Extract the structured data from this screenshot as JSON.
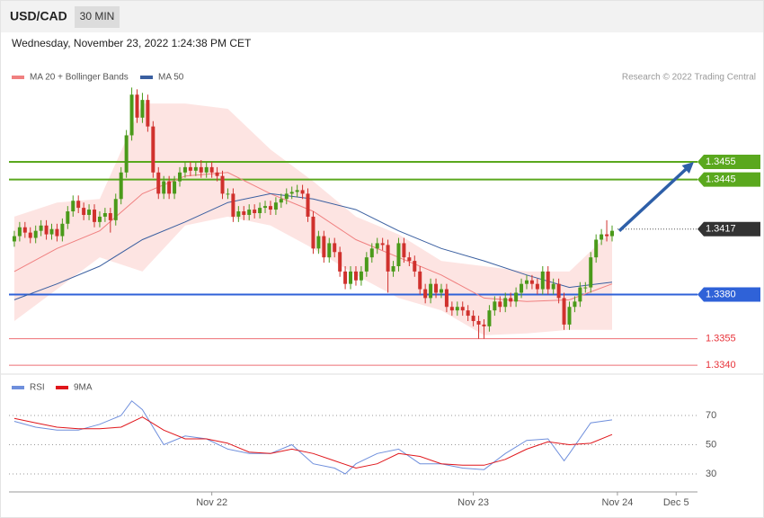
{
  "chart_data": [
    {
      "type": "candlestick",
      "title": "USD/CAD",
      "timeframe": "30 MIN",
      "subtitle": "Wednesday, November 23, 2022 1:24:38 PM CET",
      "source": "Research © 2022 Trading Central",
      "up_color": "#4a9a1a",
      "down_color": "#d0312d",
      "xlim": [
        -1,
        128
      ],
      "ylim": [
        1.3336,
        1.3516
      ],
      "open": [
        1.341,
        1.3413,
        1.3418,
        1.3415,
        1.3412,
        1.3416,
        1.3419,
        1.3414,
        1.3417,
        1.3413,
        1.342,
        1.3427,
        1.3433,
        1.3429,
        1.3425,
        1.3428,
        1.3421,
        1.3424,
        1.3426,
        1.3422,
        1.3434,
        1.3449,
        1.347,
        1.3493,
        1.348,
        1.349,
        1.3475,
        1.3449,
        1.3437,
        1.3444,
        1.3437,
        1.3444,
        1.3449,
        1.3452,
        1.345,
        1.3452,
        1.3449,
        1.3452,
        1.3449,
        1.3447,
        1.3437,
        1.3437,
        1.3424,
        1.3427,
        1.3425,
        1.3428,
        1.3426,
        1.3429,
        1.343,
        1.3428,
        1.3432,
        1.3434,
        1.3437,
        1.3438,
        1.3439,
        1.3437,
        1.3424,
        1.3406,
        1.3413,
        1.3401,
        1.3409,
        1.3404,
        1.3393,
        1.3386,
        1.3393,
        1.3388,
        1.3393,
        1.3401,
        1.3406,
        1.3409,
        1.3408,
        1.3393,
        1.3396,
        1.3409,
        1.3401,
        1.3399,
        1.3393,
        1.3383,
        1.3378,
        1.3386,
        1.3381,
        1.3383,
        1.3373,
        1.3371,
        1.3373,
        1.3371,
        1.3368,
        1.3365,
        1.3363,
        1.3362,
        1.3371,
        1.3376,
        1.3373,
        1.3378,
        1.3376,
        1.3381,
        1.3386,
        1.3388,
        1.3386,
        1.3383,
        1.3393,
        1.3383,
        1.3386,
        1.3378,
        1.3363,
        1.3373,
        1.3376,
        1.3384,
        1.3384,
        1.3401,
        1.3411,
        1.3414,
        1.3413
      ],
      "high": [
        1.3416,
        1.3421,
        1.3421,
        1.3418,
        1.3419,
        1.3422,
        1.3422,
        1.342,
        1.342,
        1.3423,
        1.343,
        1.3436,
        1.3436,
        1.3432,
        1.3431,
        1.3431,
        1.3427,
        1.3429,
        1.3429,
        1.3437,
        1.3452,
        1.3473,
        1.3497,
        1.3496,
        1.3494,
        1.3493,
        1.3478,
        1.3452,
        1.3447,
        1.3447,
        1.3447,
        1.3452,
        1.3455,
        1.3455,
        1.3455,
        1.3456,
        1.3455,
        1.3455,
        1.3452,
        1.345,
        1.344,
        1.344,
        1.343,
        1.343,
        1.3431,
        1.3431,
        1.3432,
        1.3433,
        1.3433,
        1.3435,
        1.3437,
        1.344,
        1.3441,
        1.3442,
        1.3442,
        1.344,
        1.3427,
        1.3416,
        1.3416,
        1.3412,
        1.3412,
        1.3407,
        1.3396,
        1.3396,
        1.3396,
        1.3396,
        1.3404,
        1.3409,
        1.3412,
        1.3412,
        1.3411,
        1.3399,
        1.3412,
        1.3412,
        1.3404,
        1.3402,
        1.3396,
        1.3386,
        1.3389,
        1.3389,
        1.3386,
        1.3386,
        1.3376,
        1.3376,
        1.3376,
        1.3374,
        1.3371,
        1.3368,
        1.3366,
        1.3374,
        1.3379,
        1.3379,
        1.3381,
        1.3381,
        1.3384,
        1.3389,
        1.3391,
        1.3391,
        1.3389,
        1.3396,
        1.3396,
        1.3389,
        1.3389,
        1.3381,
        1.3376,
        1.3379,
        1.3387,
        1.3387,
        1.3404,
        1.3414,
        1.3417,
        1.3422,
        1.3419
      ],
      "low": [
        1.3407,
        1.341,
        1.3412,
        1.3409,
        1.3409,
        1.3413,
        1.3411,
        1.3411,
        1.341,
        1.341,
        1.3417,
        1.3424,
        1.3426,
        1.3422,
        1.3422,
        1.3418,
        1.3418,
        1.3421,
        1.3415,
        1.3419,
        1.3431,
        1.3446,
        1.3467,
        1.3477,
        1.3477,
        1.3472,
        1.3446,
        1.3434,
        1.3434,
        1.3434,
        1.3434,
        1.3441,
        1.3446,
        1.3447,
        1.3447,
        1.3446,
        1.3446,
        1.3446,
        1.3444,
        1.3434,
        1.3434,
        1.3421,
        1.3421,
        1.3422,
        1.3422,
        1.3423,
        1.3423,
        1.3426,
        1.3425,
        1.3425,
        1.3429,
        1.3431,
        1.3434,
        1.3435,
        1.3434,
        1.3421,
        1.3403,
        1.3403,
        1.3398,
        1.3398,
        1.3401,
        1.339,
        1.3383,
        1.3383,
        1.3385,
        1.3385,
        1.339,
        1.3398,
        1.3403,
        1.3405,
        1.3381,
        1.339,
        1.3393,
        1.3398,
        1.3396,
        1.339,
        1.338,
        1.3375,
        1.3375,
        1.3378,
        1.3378,
        1.337,
        1.3368,
        1.3368,
        1.3368,
        1.3365,
        1.3362,
        1.3355,
        1.3355,
        1.3359,
        1.3368,
        1.337,
        1.337,
        1.3373,
        1.3373,
        1.3378,
        1.3383,
        1.3383,
        1.338,
        1.338,
        1.338,
        1.338,
        1.3375,
        1.336,
        1.336,
        1.337,
        1.3373,
        1.3381,
        1.3381,
        1.3398,
        1.3408,
        1.341,
        1.341
      ],
      "close": [
        1.3413,
        1.3418,
        1.3415,
        1.3412,
        1.3416,
        1.3419,
        1.3414,
        1.3417,
        1.3413,
        1.342,
        1.3427,
        1.3433,
        1.3429,
        1.3425,
        1.3428,
        1.3421,
        1.3424,
        1.3426,
        1.3422,
        1.3434,
        1.3449,
        1.347,
        1.3493,
        1.348,
        1.349,
        1.3475,
        1.3449,
        1.3437,
        1.3444,
        1.3437,
        1.3444,
        1.3449,
        1.3452,
        1.345,
        1.3452,
        1.3449,
        1.3452,
        1.3449,
        1.3447,
        1.3437,
        1.3437,
        1.3424,
        1.3427,
        1.3425,
        1.3428,
        1.3426,
        1.3429,
        1.343,
        1.3428,
        1.3432,
        1.3434,
        1.3437,
        1.3438,
        1.3439,
        1.3437,
        1.3424,
        1.3406,
        1.3413,
        1.3401,
        1.3409,
        1.3404,
        1.3393,
        1.3386,
        1.3393,
        1.3388,
        1.3393,
        1.3401,
        1.3406,
        1.3409,
        1.3408,
        1.3393,
        1.3396,
        1.3409,
        1.3401,
        1.3399,
        1.3393,
        1.3383,
        1.3378,
        1.3386,
        1.3381,
        1.3383,
        1.3373,
        1.3371,
        1.3373,
        1.3371,
        1.3368,
        1.3365,
        1.3363,
        1.3362,
        1.3371,
        1.3376,
        1.3373,
        1.3378,
        1.3376,
        1.3381,
        1.3386,
        1.3388,
        1.3386,
        1.3383,
        1.3393,
        1.3383,
        1.3386,
        1.3378,
        1.3363,
        1.3373,
        1.3376,
        1.3384,
        1.3384,
        1.3401,
        1.3411,
        1.3414,
        1.3413,
        1.3416
      ],
      "series": [
        {
          "name": "MA 20 + Bollinger Bands",
          "color": "#f08080",
          "band_color": "#fde4e2",
          "x": [
            0,
            8,
            16,
            24,
            32,
            40,
            48,
            56,
            64,
            72,
            80,
            88,
            96,
            104,
            112
          ],
          "values": [
            1.3393,
            1.3406,
            1.3416,
            1.3437,
            1.3447,
            1.3449,
            1.3437,
            1.3427,
            1.3411,
            1.3401,
            1.3391,
            1.3378,
            1.3376,
            1.3377,
            1.3386
          ],
          "upper": [
            1.3424,
            1.3432,
            1.3434,
            1.3488,
            1.3488,
            1.3485,
            1.3462,
            1.3444,
            1.3424,
            1.3414,
            1.3399,
            1.3396,
            1.3393,
            1.3393,
            1.3416
          ],
          "lower": [
            1.3365,
            1.3383,
            1.3401,
            1.3393,
            1.3419,
            1.3424,
            1.3419,
            1.3406,
            1.3391,
            1.3378,
            1.3371,
            1.3357,
            1.3358,
            1.336,
            1.336
          ]
        },
        {
          "name": "MA 50",
          "color": "#3a5fa0",
          "x": [
            0,
            8,
            16,
            24,
            32,
            40,
            48,
            56,
            64,
            72,
            80,
            88,
            96,
            104,
            112
          ],
          "values": [
            1.3377,
            1.3386,
            1.3396,
            1.3411,
            1.3421,
            1.3432,
            1.3437,
            1.3434,
            1.3428,
            1.3416,
            1.3406,
            1.3399,
            1.3391,
            1.3384,
            1.3387
          ]
        }
      ],
      "levels": [
        {
          "value": 1.3455,
          "color": "#5aa81e",
          "style": "box"
        },
        {
          "value": 1.3445,
          "color": "#5aa81e",
          "style": "box"
        },
        {
          "value": 1.3417,
          "color": "#333333",
          "style": "dotted-box"
        },
        {
          "value": 1.338,
          "label": "1.3380",
          "color": "#2f62d8",
          "style": "box"
        },
        {
          "value": 1.3355,
          "color": "#e8333a",
          "style": "text"
        },
        {
          "value": 1.334,
          "label": "1.3340",
          "color": "#e8333a",
          "style": "text"
        }
      ],
      "arrow_color": "#2e5fa8"
    },
    {
      "type": "line",
      "xlim": [
        -1,
        128
      ],
      "ylim": [
        20,
        95
      ],
      "yticks": [
        30,
        50,
        70
      ],
      "grid": true,
      "xticks": [
        {
          "value": 37,
          "label": "Nov 22"
        },
        {
          "value": 86,
          "label": "Nov 23"
        },
        {
          "value": 113,
          "label": "Nov 24"
        },
        {
          "value": 124,
          "label": "Dec 5"
        }
      ],
      "series": [
        {
          "name": "RSI",
          "color": "#6f8fdc",
          "x": [
            0,
            4,
            8,
            12,
            16,
            20,
            22,
            24,
            28,
            32,
            36,
            40,
            44,
            48,
            52,
            56,
            60,
            62,
            64,
            68,
            72,
            76,
            80,
            84,
            88,
            92,
            96,
            100,
            103,
            104,
            108,
            112
          ],
          "values": [
            66,
            62,
            60,
            60,
            64,
            70,
            80,
            74,
            50,
            56,
            54,
            47,
            44,
            44,
            50,
            37,
            34,
            30,
            37,
            44,
            47,
            37,
            37,
            34,
            33,
            44,
            53,
            54,
            39,
            44,
            65,
            67
          ]
        },
        {
          "name": "9MA",
          "color": "#e0161b",
          "x": [
            0,
            4,
            8,
            12,
            16,
            20,
            24,
            28,
            32,
            36,
            40,
            44,
            48,
            52,
            56,
            60,
            64,
            68,
            72,
            76,
            80,
            84,
            88,
            92,
            96,
            100,
            104,
            108,
            112
          ],
          "values": [
            68,
            65,
            62,
            61,
            61,
            62,
            69,
            60,
            54,
            54,
            51,
            45,
            44,
            47,
            44,
            39,
            34,
            37,
            44,
            42,
            37,
            36,
            36,
            40,
            47,
            52,
            50,
            51,
            57
          ]
        }
      ]
    }
  ]
}
